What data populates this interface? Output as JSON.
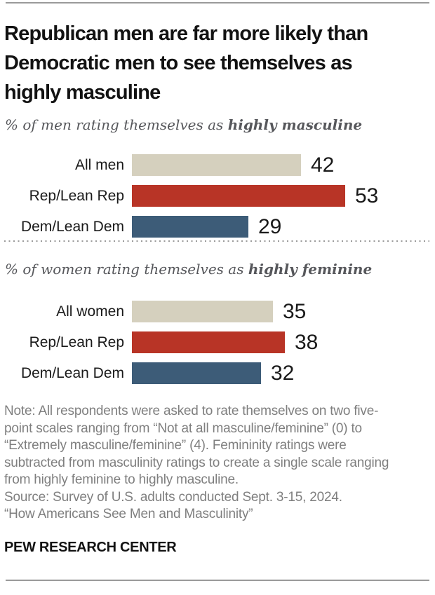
{
  "header": {
    "title_lines": [
      "Republican men are far more likely than",
      "Democratic men to see themselves as",
      "highly masculine"
    ]
  },
  "chart_data": [
    {
      "type": "bar",
      "orientation": "horizontal",
      "title_prefix": "% of men rating themselves as ",
      "title_emphasis": "highly masculine",
      "categories": [
        "All men",
        "Rep/Lean Rep",
        "Dem/Lean Dem"
      ],
      "values": [
        42,
        53,
        29
      ],
      "colors": [
        "#d5d0be",
        "#b83426",
        "#3d5c78"
      ],
      "xlim": [
        0,
        60
      ],
      "grid": false,
      "value_labels": "end-of-bar"
    },
    {
      "type": "bar",
      "orientation": "horizontal",
      "title_prefix": "% of women rating themselves as ",
      "title_emphasis": "highly feminine",
      "categories": [
        "All women",
        "Rep/Lean Rep",
        "Dem/Lean Dem"
      ],
      "values": [
        35,
        38,
        32
      ],
      "colors": [
        "#d5d0be",
        "#b83426",
        "#3d5c78"
      ],
      "xlim": [
        0,
        60
      ],
      "grid": false,
      "value_labels": "end-of-bar"
    }
  ],
  "note": {
    "lines": [
      "Note: All respondents were asked to rate themselves on two five-",
      "point scales ranging from “Not at all masculine/feminine” (0) to",
      "“Extremely masculine/feminine” (4). Femininity ratings were",
      "subtracted from masculinity ratings to create a single scale ranging",
      "from highly feminine to highly masculine.",
      "Source: Survey of U.S. adults conducted Sept. 3-15, 2024.",
      "“How Americans See Men and Masculinity”"
    ]
  },
  "footer": {
    "wordmark": "PEW RESEARCH CENTER"
  },
  "style_tokens": {
    "bar_beige": "#d5d0be",
    "bar_red": "#b83426",
    "bar_blue": "#3d5c78",
    "rule_gray": "#9a9a9a",
    "note_gray": "#7f7f7f",
    "subtitle_gray": "#56575b"
  }
}
